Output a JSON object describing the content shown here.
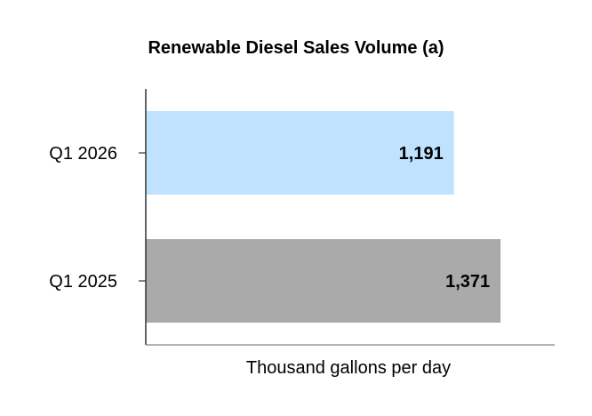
{
  "chart_data": {
    "type": "bar",
    "orientation": "horizontal",
    "title": "Renewable Diesel Sales Volume (a)",
    "xlabel": "Thousand gallons per day",
    "ylabel": "",
    "categories": [
      "Q1 2026",
      "Q1 2025"
    ],
    "values": [
      1191,
      1371
    ],
    "value_labels": [
      "1,191",
      "1,371"
    ],
    "bar_colors": [
      "#bfe3ff",
      "#aaaaaa"
    ],
    "xlim": [
      0,
      1580
    ],
    "grid": false,
    "legend": "none"
  }
}
